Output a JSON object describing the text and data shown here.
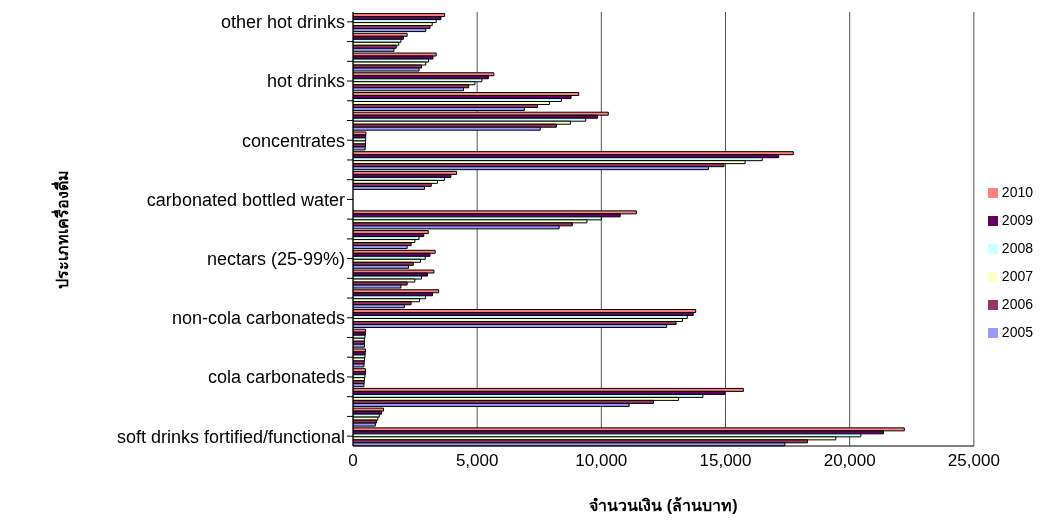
{
  "chart_data": {
    "type": "bar",
    "orientation": "horizontal",
    "xlabel": "จำนวนเงิน (ล้านบาท)",
    "ylabel": "ประเภทเครื่องดื่ม",
    "categories": [
      "other hot drinks",
      null,
      null,
      "hot drinks",
      null,
      null,
      "concentrates",
      null,
      null,
      "carbonated bottled water",
      null,
      null,
      "nectars (25-99%)",
      null,
      null,
      "non-cola carbonateds",
      null,
      null,
      "cola carbonateds",
      null,
      null,
      "soft drinks fortified/functional"
    ],
    "series": [
      {
        "name": "2010",
        "color": "#ff8080",
        "values": [
          3690,
          2180,
          3350,
          5670,
          9090,
          10280,
          520,
          17730,
          4170,
          null,
          11410,
          3030,
          3310,
          3260,
          3450,
          13800,
          500,
          500,
          500,
          15720,
          1230,
          22200
        ]
      },
      {
        "name": "2009",
        "color": "#660066",
        "values": [
          3540,
          2030,
          3220,
          5450,
          8780,
          9850,
          510,
          17140,
          3940,
          null,
          10760,
          2850,
          3100,
          3000,
          3200,
          13700,
          500,
          490,
          500,
          14970,
          1150,
          21360
        ]
      },
      {
        "name": "2008",
        "color": "#ccffff",
        "values": [
          3350,
          1930,
          3040,
          5190,
          8390,
          9370,
          510,
          16480,
          3680,
          null,
          10000,
          2660,
          2910,
          2760,
          2920,
          13460,
          480,
          480,
          480,
          14090,
          1060,
          20450
        ]
      },
      {
        "name": "2007",
        "color": "#ffffcc",
        "values": [
          3190,
          1840,
          2930,
          4910,
          7910,
          8760,
          500,
          15790,
          3400,
          null,
          9420,
          2490,
          2720,
          2490,
          2680,
          13270,
          460,
          460,
          460,
          13110,
          1000,
          19440
        ]
      },
      {
        "name": "2006",
        "color": "#993366",
        "values": [
          3100,
          1740,
          2760,
          4660,
          7430,
          8190,
          500,
          14940,
          3150,
          null,
          8830,
          2340,
          2430,
          2180,
          2340,
          13010,
          460,
          450,
          450,
          12100,
          940,
          18300
        ]
      },
      {
        "name": "2005",
        "color": "#9999ff",
        "values": [
          2930,
          1650,
          2660,
          4450,
          6900,
          7540,
          490,
          14310,
          2880,
          null,
          8300,
          2180,
          2240,
          1930,
          2070,
          12630,
          460,
          440,
          440,
          11120,
          900,
          17390
        ]
      }
    ],
    "xlim": [
      0,
      25000
    ],
    "xticks": [
      0,
      {
        "value": 5000,
        "label": "5,000"
      },
      {
        "value": 10000,
        "label": "10,000"
      },
      {
        "value": 15000,
        "label": "15,000"
      },
      {
        "value": 20000,
        "label": "20,000"
      },
      {
        "value": 25000,
        "label": "25,000"
      }
    ],
    "grid": "x",
    "legend": "right"
  }
}
